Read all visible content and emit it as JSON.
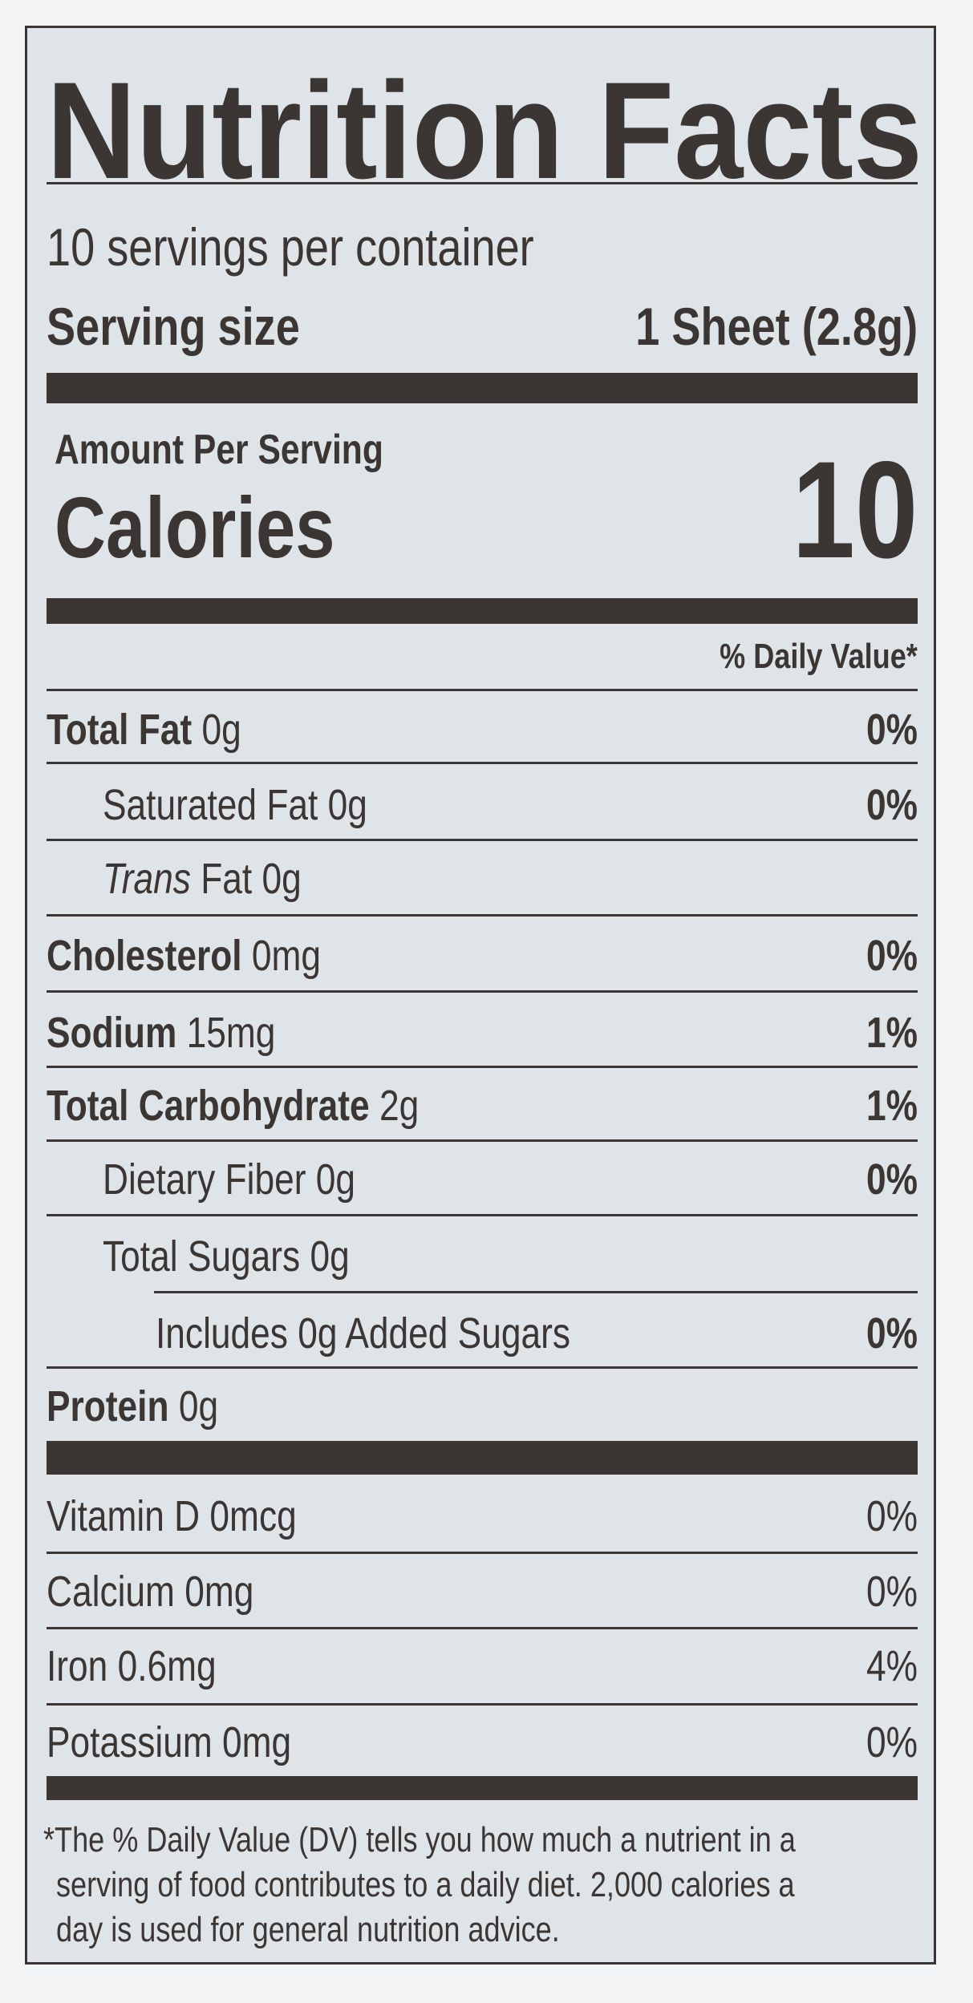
{
  "title": "Nutrition Facts",
  "servings_per_container": "10 servings per container",
  "serving_size_label": "Serving size",
  "serving_size_value": "1 Sheet (2.8g)",
  "amount_per_serving": "Amount Per Serving",
  "calories_label": "Calories",
  "calories_value": "10",
  "daily_value_header": "% Daily Value*",
  "nutrients": [
    {
      "name": "Total Fat",
      "amount": "0g",
      "dv": "0%"
    },
    {
      "name": "Saturated Fat",
      "amount": "0g",
      "dv": "0%"
    },
    {
      "name_italic": "Trans",
      "name": "Fat",
      "amount": "0g",
      "dv": ""
    },
    {
      "name": "Cholesterol",
      "amount": "0mg",
      "dv": "0%"
    },
    {
      "name": "Sodium",
      "amount": "15mg",
      "dv": "1%"
    },
    {
      "name": "Total Carbohydrate",
      "amount": "2g",
      "dv": "1%"
    },
    {
      "name": "Dietary Fiber",
      "amount": "0g",
      "dv": "0%"
    },
    {
      "name": "Total Sugars",
      "amount": "0g",
      "dv": ""
    },
    {
      "name": "Includes 0g Added Sugars",
      "amount": "",
      "dv": "0%"
    },
    {
      "name": "Protein",
      "amount": "0g",
      "dv": ""
    }
  ],
  "vitamins": [
    {
      "text": "Vitamin D 0mcg",
      "dv": "0%"
    },
    {
      "text": "Calcium 0mg",
      "dv": "0%"
    },
    {
      "text": "Iron 0.6mg",
      "dv": "4%"
    },
    {
      "text": "Potassium 0mg",
      "dv": "0%"
    }
  ],
  "footnote": {
    "line1": "*The % Daily Value (DV) tells you how much a nutrient in a",
    "line2": "serving of food contributes to a daily diet. 2,000 calories a",
    "line3": "day is used for general nutrition advice."
  }
}
